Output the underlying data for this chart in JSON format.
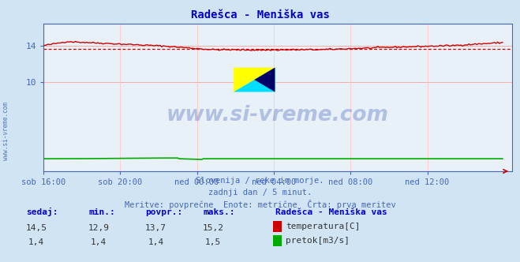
{
  "title": "Radešca - Meniška vas",
  "bg_color": "#d0e4f4",
  "plot_bg_color": "#e8f0f8",
  "grid_color_h": "#ffaaaa",
  "grid_color_v": "#ffcccc",
  "title_color": "#0000cc",
  "axis_color": "#4466bb",
  "text_color": "#4466bb",
  "watermark": "www.si-vreme.com",
  "xlabel_items": [
    "sob 16:00",
    "sob 20:00",
    "ned 00:00",
    "ned 04:00",
    "ned 08:00",
    "ned 12:00"
  ],
  "ylim": [
    0,
    16.5
  ],
  "xlim_max": 293,
  "n_points": 288,
  "temp_avg": 13.7,
  "temp_min": 12.9,
  "temp_max": 15.2,
  "flow_avg": 1.4,
  "subtitle1": "Slovenija / reke in morje.",
  "subtitle2": "zadnji dan / 5 minut.",
  "subtitle3": "Meritve: povprečne  Enote: metrične  Črta: prva meritev",
  "legend_title": "Radešca - Meniška vas",
  "leg1": "temperatura[C]",
  "leg2": "pretok[m3/s]",
  "col_headers": [
    "sedaj:",
    "min.:",
    "povpr.:",
    "maks.:"
  ],
  "row1_vals": [
    "14,5",
    "12,9",
    "13,7",
    "15,2"
  ],
  "row2_vals": [
    "1,4",
    "1,4",
    "1,4",
    "1,5"
  ],
  "temp_color": "#cc0000",
  "flow_color": "#00aa00",
  "arrow_color": "#cc0000"
}
